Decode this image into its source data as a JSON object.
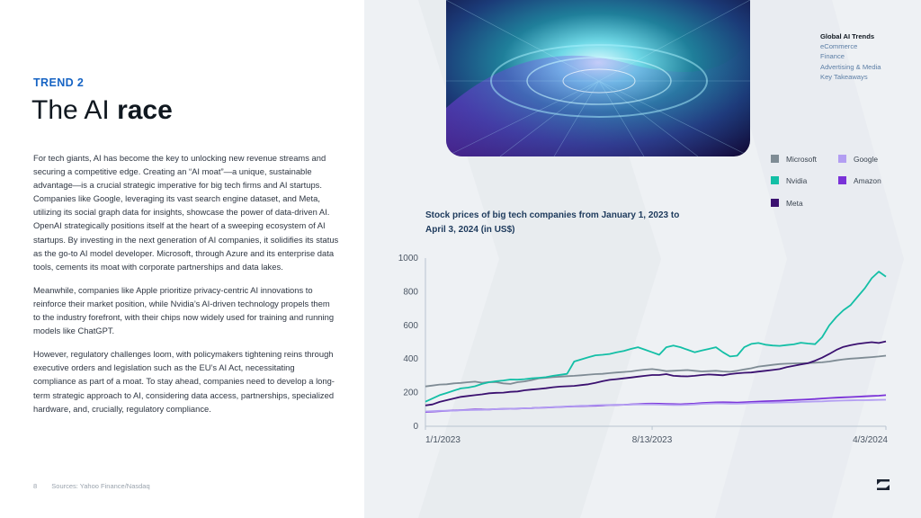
{
  "trend_label": "TREND 2",
  "title": {
    "normal": "The AI ",
    "bold": "race"
  },
  "paragraphs": [
    "For tech giants, AI has become the key to unlocking new revenue streams and securing a competitive edge. Creating an “AI moat”—a unique, sustainable advantage—is a crucial strategic imperative for big tech firms and AI startups. Companies like Google, leveraging its vast search engine dataset, and Meta, utilizing its social graph data for insights, showcase the power of data-driven AI. OpenAI strategically positions itself at the heart of a sweeping ecosystem of AI startups. By investing in the next generation of AI companies, it solidifies its status as the go-to AI model developer. Microsoft, through Azure and its enterprise data tools, cements its moat with corporate partnerships and data lakes.",
    "Meanwhile, companies like Apple prioritize privacy-centric AI innovations to reinforce their market position, while Nvidia’s AI-driven technology propels them to the industry forefront, with their chips now widely used for training and running models like ChatGPT.",
    "However, regulatory challenges loom, with policymakers tightening reins through executive orders and legislation such as the EU’s AI Act, neces­sitating compliance as part of a moat. To stay ahead, companies need to develop a long-term strategic approach to AI, considering data access, partnerships, specialized hardware, and, crucially, regulatory compliance."
  ],
  "footer": {
    "page": "8",
    "source": "Sources: Yahoo Finance/Nasdaq"
  },
  "nav": {
    "items": [
      "Global AI Trends",
      "eCommerce",
      "Finance",
      "Advertising & Media",
      "Key Takeaways"
    ],
    "active_index": 0
  },
  "colors": {
    "accent": "#1764c4",
    "microsoft": "#7f8c95",
    "nvidia": "#13bfa6",
    "meta": "#3b1170",
    "google": "#b39ef2",
    "amazon": "#7a32d8"
  },
  "chart_data": {
    "type": "line",
    "title": "Stock prices of big tech companies from January 1, 2023 to April 3, 2024 (in US$)",
    "xlabel": "",
    "ylabel": "",
    "ylim": [
      0,
      1000
    ],
    "yticks": [
      0,
      200,
      400,
      600,
      800,
      1000
    ],
    "xticks": [
      {
        "label": "1/1/2023",
        "index": 0
      },
      {
        "label": "8/13/2023",
        "index": 32
      },
      {
        "label": "4/3/2024",
        "index": 65
      }
    ],
    "grid": "vertical-ticks",
    "legend": "top-right",
    "series": [
      {
        "name": "Microsoft",
        "color": "#7f8c95",
        "values": [
          237,
          242,
          248,
          250,
          255,
          258,
          262,
          265,
          259,
          263,
          262,
          255,
          252,
          262,
          267,
          275,
          285,
          288,
          292,
          295,
          298,
          300,
          303,
          307,
          310,
          312,
          316,
          320,
          323,
          326,
          332,
          337,
          340,
          335,
          328,
          330,
          332,
          334,
          330,
          326,
          328,
          330,
          326,
          324,
          330,
          338,
          345,
          355,
          360,
          365,
          370,
          372,
          374,
          375,
          376,
          378,
          380,
          385,
          392,
          398,
          402,
          405,
          408,
          411,
          415,
          420
        ]
      },
      {
        "name": "Nvidia",
        "color": "#13bfa6",
        "values": [
          146,
          165,
          185,
          198,
          212,
          225,
          230,
          238,
          252,
          262,
          268,
          272,
          278,
          277,
          280,
          285,
          288,
          292,
          300,
          306,
          312,
          385,
          398,
          410,
          422,
          425,
          430,
          440,
          448,
          460,
          470,
          455,
          440,
          425,
          470,
          480,
          470,
          455,
          440,
          450,
          460,
          470,
          440,
          415,
          420,
          470,
          490,
          495,
          485,
          480,
          478,
          483,
          487,
          497,
          492,
          488,
          530,
          600,
          650,
          690,
          720,
          770,
          820,
          880,
          920,
          890
        ]
      },
      {
        "name": "Meta",
        "color": "#3b1170",
        "values": [
          124,
          130,
          145,
          155,
          165,
          175,
          180,
          185,
          190,
          196,
          199,
          200,
          205,
          207,
          214,
          218,
          222,
          226,
          232,
          236,
          238,
          240,
          245,
          250,
          258,
          268,
          276,
          280,
          285,
          290,
          295,
          300,
          305,
          305,
          310,
          300,
          298,
          297,
          300,
          305,
          308,
          306,
          303,
          310,
          315,
          318,
          320,
          325,
          330,
          335,
          340,
          352,
          360,
          368,
          375,
          390,
          408,
          430,
          454,
          472,
          482,
          490,
          495,
          500,
          495,
          505
        ]
      },
      {
        "name": "Google",
        "color": "#b39ef2",
        "values": [
          88,
          90,
          92,
          92,
          93,
          95,
          96,
          97,
          98,
          100,
          102,
          103,
          104,
          106,
          107,
          108,
          110,
          112,
          114,
          116,
          118,
          120,
          122,
          123,
          125,
          126,
          127,
          128,
          128,
          129,
          130,
          130,
          130,
          129,
          128,
          127,
          126,
          128,
          130,
          133,
          135,
          136,
          136,
          135,
          134,
          136,
          138,
          139,
          140,
          140,
          141,
          142,
          143,
          145,
          146,
          147,
          148,
          150,
          152,
          153,
          154,
          155,
          155,
          156,
          157,
          158
        ]
      },
      {
        "name": "Amazon",
        "color": "#7a32d8",
        "values": [
          85,
          87,
          90,
          92,
          94,
          96,
          98,
          100,
          100,
          100,
          102,
          103,
          104,
          105,
          107,
          108,
          110,
          111,
          113,
          115,
          117,
          118,
          120,
          121,
          122,
          124,
          126,
          127,
          128,
          130,
          132,
          134,
          135,
          134,
          133,
          132,
          131,
          133,
          135,
          138,
          140,
          142,
          143,
          142,
          141,
          143,
          145,
          147,
          149,
          150,
          152,
          154,
          156,
          158,
          160,
          162,
          165,
          168,
          170,
          172,
          174,
          176,
          178,
          180,
          182,
          185
        ]
      }
    ]
  }
}
